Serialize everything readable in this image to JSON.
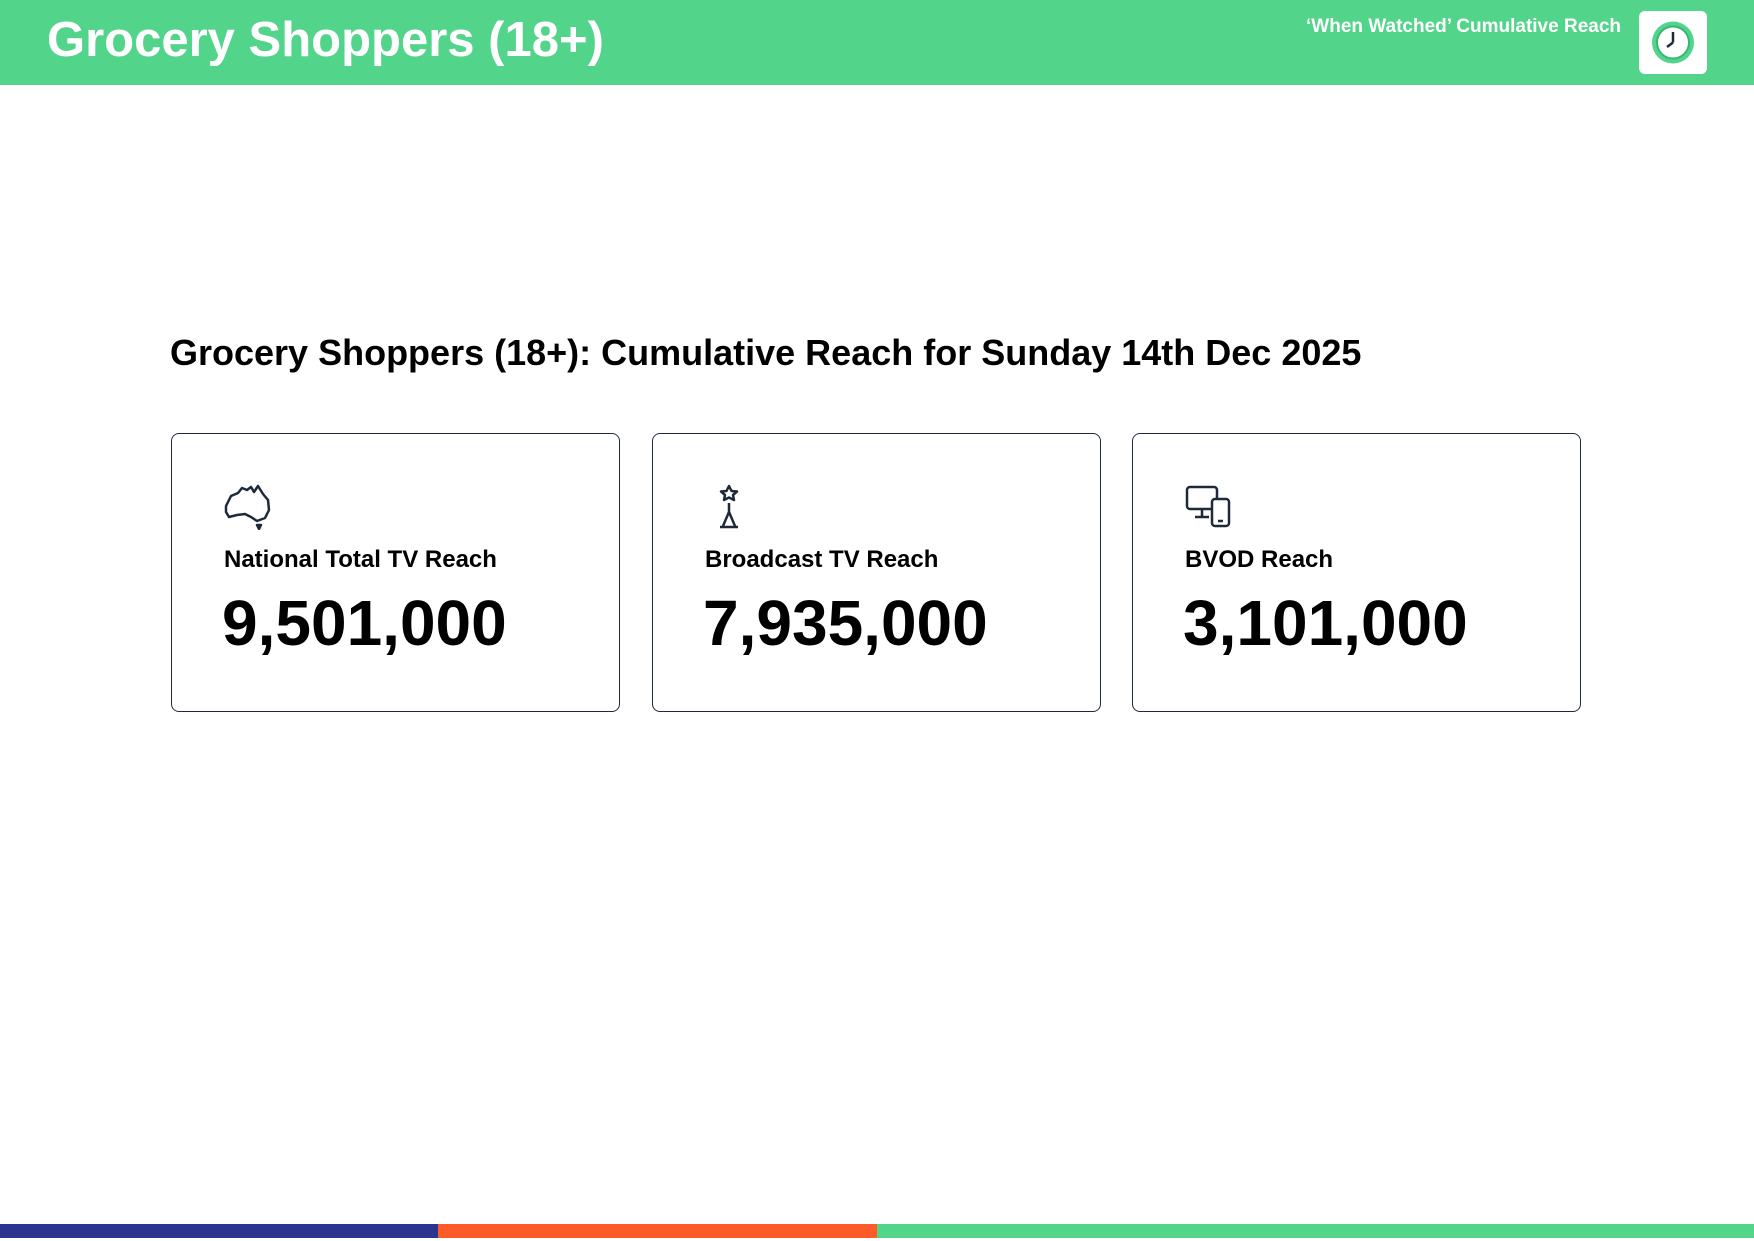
{
  "header": {
    "title": "Grocery Shoppers (18+)",
    "subtitle": "‘When Watched’ Cumulative Reach"
  },
  "heading": "Grocery Shoppers (18+): Cumulative Reach for Sunday 14th Dec 2025",
  "cards": [
    {
      "label": "National Total TV Reach",
      "value": "9,501,000"
    },
    {
      "label": "Broadcast TV Reach",
      "value": "7,935,000"
    },
    {
      "label": "BVOD Reach",
      "value": "3,101,000"
    }
  ]
}
